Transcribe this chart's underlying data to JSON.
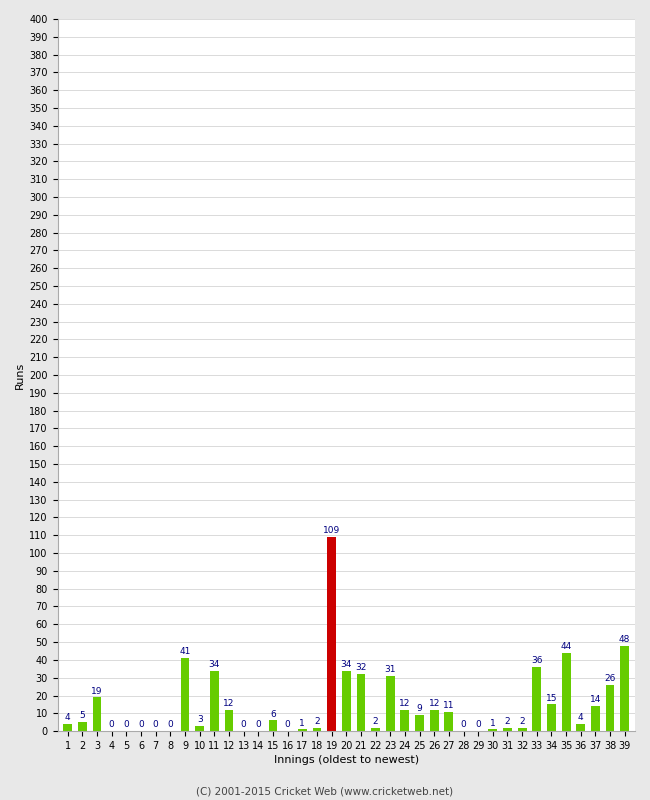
{
  "innings": [
    1,
    2,
    3,
    4,
    5,
    6,
    7,
    8,
    9,
    10,
    11,
    12,
    13,
    14,
    15,
    16,
    17,
    18,
    19,
    20,
    21,
    22,
    23,
    24,
    25,
    26,
    27,
    28,
    29,
    30,
    31,
    32,
    33,
    34,
    35,
    36,
    37,
    38,
    39
  ],
  "runs": [
    4,
    5,
    19,
    0,
    0,
    0,
    0,
    0,
    41,
    3,
    34,
    12,
    0,
    0,
    6,
    0,
    1,
    2,
    109,
    34,
    32,
    2,
    31,
    12,
    9,
    12,
    11,
    0,
    0,
    1,
    2,
    2,
    36,
    15,
    44,
    4,
    14,
    26,
    48
  ],
  "colors": [
    "#66cc00",
    "#66cc00",
    "#66cc00",
    "#66cc00",
    "#66cc00",
    "#66cc00",
    "#66cc00",
    "#66cc00",
    "#66cc00",
    "#66cc00",
    "#66cc00",
    "#66cc00",
    "#66cc00",
    "#66cc00",
    "#66cc00",
    "#66cc00",
    "#66cc00",
    "#66cc00",
    "#cc0000",
    "#66cc00",
    "#66cc00",
    "#66cc00",
    "#66cc00",
    "#66cc00",
    "#66cc00",
    "#66cc00",
    "#66cc00",
    "#66cc00",
    "#66cc00",
    "#66cc00",
    "#66cc00",
    "#66cc00",
    "#66cc00",
    "#66cc00",
    "#66cc00",
    "#66cc00",
    "#66cc00",
    "#66cc00",
    "#66cc00"
  ],
  "xlabel": "Innings (oldest to newest)",
  "ylabel": "Runs",
  "footer": "(C) 2001-2015 Cricket Web (www.cricketweb.net)",
  "ylim": [
    0,
    400
  ],
  "ytick_step": 10,
  "outer_bg": "#e8e8e8",
  "plot_bg": "#ffffff",
  "label_color": "#000080",
  "label_fontsize": 6.5,
  "axis_label_fontsize": 8,
  "tick_fontsize": 7,
  "bar_width": 0.6,
  "footer_color": "#444444",
  "footer_fontsize": 7.5,
  "grid_color": "#cccccc",
  "spine_color": "#aaaaaa"
}
